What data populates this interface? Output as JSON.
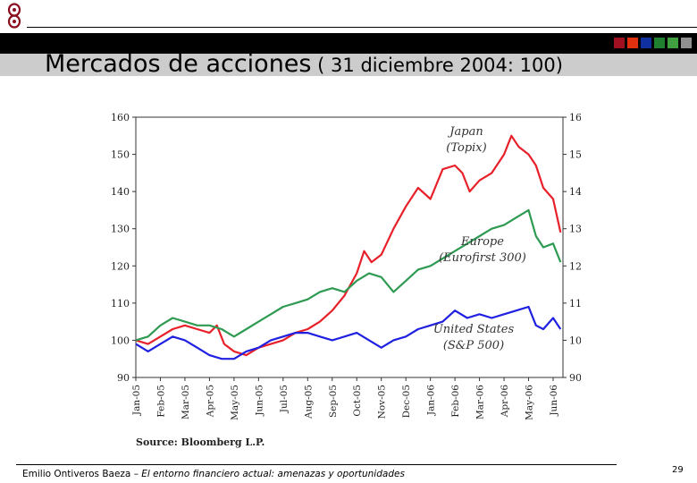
{
  "slide": {
    "title_main": "Mercados de acciones",
    "title_sub": " ( 31 diciembre 2004: 100)",
    "footer_author": "Emilio Ontiveros Baeza – ",
    "footer_title": "El entorno financiero actual: amenazas y oportunidades",
    "page_number": "29",
    "logo_icon": "linked-loops-logo-icon",
    "swatch_colors": [
      "#a01020",
      "#e03010",
      "#1030a0",
      "#208030",
      "#40a040",
      "#909090"
    ]
  },
  "chart_data": {
    "type": "line",
    "ylim": [
      90,
      160
    ],
    "yticks": [
      90,
      100,
      110,
      120,
      130,
      140,
      150,
      160
    ],
    "categories": [
      "Jan-05",
      "Feb-05",
      "Mar-05",
      "Apr-05",
      "May-05",
      "Jun-05",
      "Jul-05",
      "Aug-05",
      "Sep-05",
      "Oct-05",
      "Nov-05",
      "Dec-05",
      "Jan-06",
      "Feb-06",
      "Mar-06",
      "Apr-06",
      "May-06",
      "Jun-06"
    ],
    "x_range": [
      0,
      17.4
    ],
    "source": "Source: Bloomberg L.P.",
    "series": [
      {
        "name": "Japan (Topix)",
        "label_lines": [
          "Japan",
          "(Topix)"
        ],
        "color": "#e8202a",
        "x": [
          0,
          0.5,
          1,
          1.5,
          2,
          2.5,
          3,
          3.3,
          3.6,
          4,
          4.5,
          5,
          5.5,
          6,
          6.5,
          7,
          7.5,
          8,
          8.5,
          9,
          9.3,
          9.6,
          10,
          10.5,
          11,
          11.5,
          12,
          12.5,
          13,
          13.3,
          13.6,
          14,
          14.5,
          15,
          15.3,
          15.6,
          16,
          16.3,
          16.6,
          17,
          17.3
        ],
        "values": [
          100,
          99,
          101,
          103,
          104,
          103,
          102,
          104,
          99,
          97,
          96,
          98,
          99,
          100,
          102,
          103,
          105,
          108,
          112,
          118,
          124,
          121,
          123,
          130,
          136,
          141,
          138,
          146,
          147,
          145,
          140,
          143,
          145,
          150,
          155,
          152,
          150,
          147,
          141,
          138,
          129
        ]
      },
      {
        "name": "Europe (Eurofirst 300)",
        "label_lines": [
          "Europe",
          "(Eurofirst 300)"
        ],
        "color": "#2e9a52",
        "x": [
          0,
          0.5,
          1,
          1.5,
          2,
          2.5,
          3,
          3.5,
          4,
          4.5,
          5,
          5.5,
          6,
          6.5,
          7,
          7.5,
          8,
          8.5,
          9,
          9.5,
          10,
          10.5,
          11,
          11.5,
          12,
          12.5,
          13,
          13.5,
          14,
          14.5,
          15,
          15.5,
          16,
          16.3,
          16.6,
          17,
          17.3
        ],
        "values": [
          100,
          101,
          104,
          106,
          105,
          104,
          104,
          103,
          101,
          103,
          105,
          107,
          109,
          110,
          111,
          113,
          114,
          113,
          116,
          118,
          117,
          113,
          116,
          119,
          120,
          122,
          124,
          126,
          128,
          130,
          131,
          133,
          135,
          128,
          125,
          126,
          121
        ]
      },
      {
        "name": "United States (S&P 500)",
        "label_lines": [
          "United States",
          "(S&P 500)"
        ],
        "color": "#2020e0",
        "x": [
          0,
          0.5,
          1,
          1.5,
          2,
          2.5,
          3,
          3.5,
          4,
          4.5,
          5,
          5.5,
          6,
          6.5,
          7,
          7.5,
          8,
          8.5,
          9,
          9.5,
          10,
          10.5,
          11,
          11.5,
          12,
          12.5,
          13,
          13.5,
          14,
          14.5,
          15,
          15.5,
          16,
          16.3,
          16.6,
          17,
          17.3
        ],
        "values": [
          99,
          97,
          99,
          101,
          100,
          98,
          96,
          95,
          95,
          97,
          98,
          100,
          101,
          102,
          102,
          101,
          100,
          101,
          102,
          100,
          98,
          100,
          101,
          103,
          104,
          105,
          108,
          106,
          107,
          106,
          107,
          108,
          109,
          104,
          103,
          106,
          103
        ]
      }
    ]
  }
}
